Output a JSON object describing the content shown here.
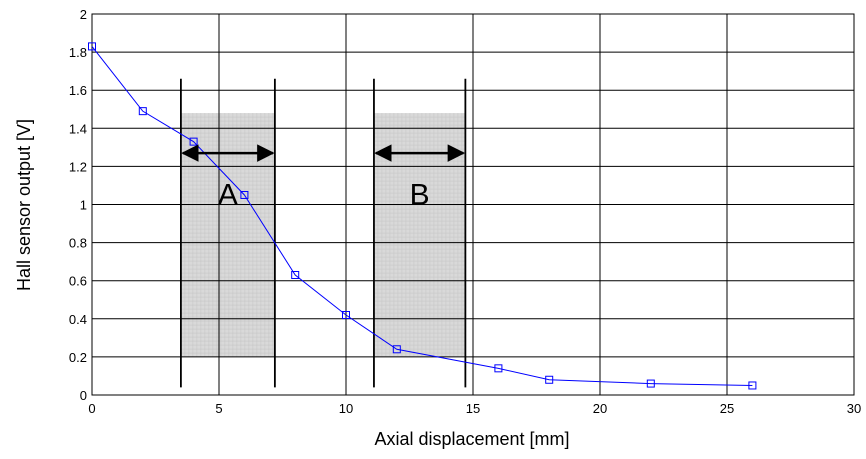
{
  "chart_data": {
    "type": "line",
    "title": "",
    "xlabel": "Axial displacement  [mm]",
    "ylabel": "Hall sensor output [V]",
    "xlim": [
      0,
      30
    ],
    "ylim": [
      0,
      2
    ],
    "xticks": [
      0,
      5,
      10,
      15,
      20,
      25,
      30
    ],
    "yticks": [
      0,
      0.2,
      0.4,
      0.6,
      0.8,
      1,
      1.2,
      1.4,
      1.6,
      1.8,
      2
    ],
    "grid": true,
    "series": [
      {
        "color": "#0000ff",
        "marker": "square",
        "x": [
          0,
          2,
          4,
          6,
          8,
          10,
          12,
          16,
          18,
          22,
          26
        ],
        "y": [
          1.83,
          1.49,
          1.33,
          1.05,
          0.63,
          0.42,
          0.24,
          0.14,
          0.08,
          0.06,
          0.05
        ]
      }
    ],
    "regions": [
      {
        "label": "A",
        "x_start": 3.5,
        "x_end": 7.2,
        "y_start": 0.2,
        "y_end": 1.48,
        "arrow_y": 1.27
      },
      {
        "label": "B",
        "x_start": 11.1,
        "x_end": 14.7,
        "y_start": 0.2,
        "y_end": 1.48,
        "arrow_y": 1.27
      }
    ],
    "region_fill": "#d9d9d9"
  }
}
